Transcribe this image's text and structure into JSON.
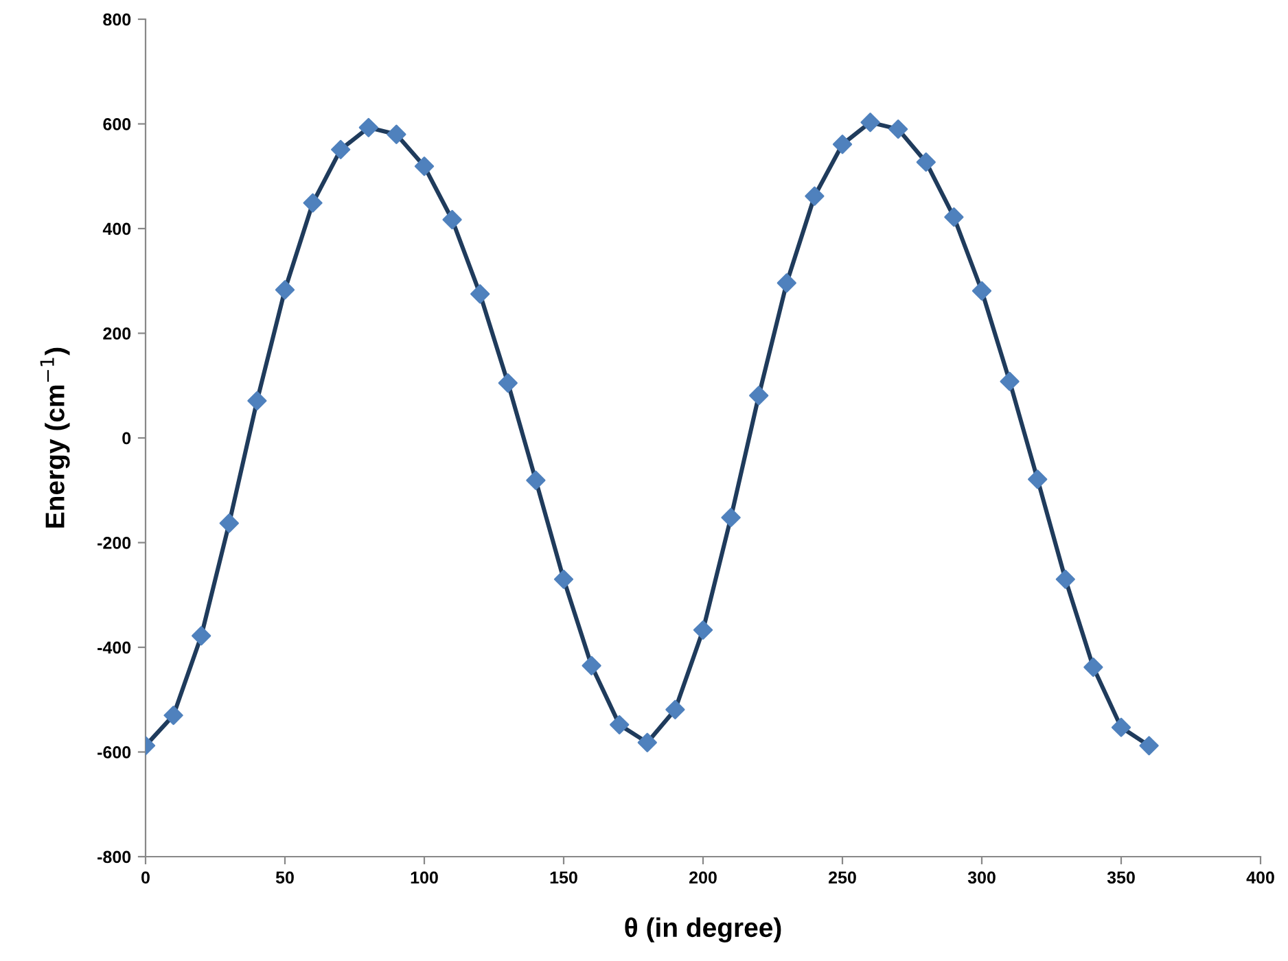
{
  "chart_data": {
    "type": "line",
    "xlabel": "θ (in degree)",
    "ylabel": "Energy (cm$^{−1}$)",
    "x": [
      0,
      10,
      20,
      30,
      40,
      50,
      60,
      70,
      80,
      90,
      100,
      110,
      120,
      130,
      140,
      150,
      160,
      170,
      180,
      190,
      200,
      210,
      220,
      230,
      240,
      250,
      260,
      270,
      280,
      290,
      300,
      310,
      320,
      330,
      340,
      350,
      360
    ],
    "series": [
      {
        "color": "#1f3b5c",
        "marker": "none",
        "values": [
          -588,
          -530,
          -378,
          -163,
          71,
          283,
          449,
          551,
          593,
          580,
          519,
          417,
          275,
          105,
          -81,
          -270,
          -435,
          -548,
          -582,
          -519,
          -367,
          -152,
          81,
          296,
          462,
          561,
          603,
          590,
          527,
          422,
          281,
          108,
          -79,
          -270,
          -438,
          -553,
          -588
        ]
      },
      {
        "type": "scatter",
        "color": "#4f81bd",
        "marker": "diamond",
        "values": [
          -588,
          -530,
          -378,
          -163,
          71,
          283,
          449,
          551,
          593,
          580,
          519,
          417,
          275,
          105,
          -81,
          -270,
          -435,
          -548,
          -582,
          -519,
          -367,
          -152,
          81,
          296,
          462,
          561,
          603,
          590,
          527,
          422,
          281,
          108,
          -79,
          -270,
          -438,
          -553,
          -588
        ]
      }
    ],
    "xlim": [
      0,
      400
    ],
    "xticks": [
      0,
      50,
      100,
      150,
      200,
      250,
      300,
      350,
      400
    ],
    "ylim": [
      -800,
      800
    ],
    "yticks": [
      -800,
      -600,
      -400,
      -200,
      0,
      200,
      400,
      600,
      800
    ],
    "grid": false,
    "legend": false
  }
}
